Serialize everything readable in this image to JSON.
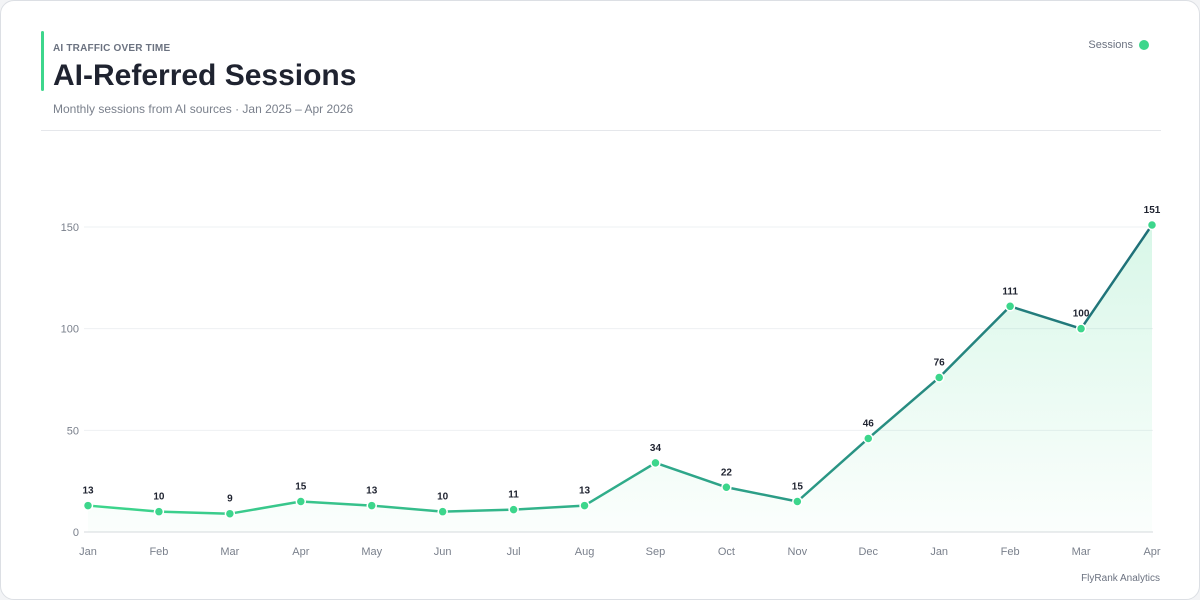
{
  "header": {
    "eyebrow": "AI TRAFFIC OVER TIME",
    "title": "AI-Referred Sessions",
    "subtitle": "Monthly sessions from AI sources · Jan 2025 – Apr 2026"
  },
  "legend": {
    "label": "Sessions"
  },
  "footer": {
    "credit": "FlyRank Analytics"
  },
  "colors": {
    "accent": "#3dd68c",
    "line_start": "#3dd68c",
    "line_end": "#1f6f78",
    "grid": "#eef0f3",
    "text": "#1f2330"
  },
  "chart_data": {
    "type": "area",
    "title": "AI-Referred Sessions",
    "categories": [
      "Jan",
      "Feb",
      "Mar",
      "Apr",
      "May",
      "Jun",
      "Jul",
      "Aug",
      "Sep",
      "Oct",
      "Nov",
      "Dec",
      "Jan",
      "Feb",
      "Mar",
      "Apr"
    ],
    "series": [
      {
        "name": "Sessions",
        "values": [
          13,
          10,
          9,
          15,
          13,
          10,
          11,
          13,
          34,
          22,
          15,
          46,
          76,
          111,
          100,
          151
        ]
      }
    ],
    "ylim": [
      0,
      150
    ],
    "yticks": [
      0,
      50,
      100,
      150
    ],
    "grid": true,
    "legend_position": "top-right",
    "data_labels": true
  }
}
